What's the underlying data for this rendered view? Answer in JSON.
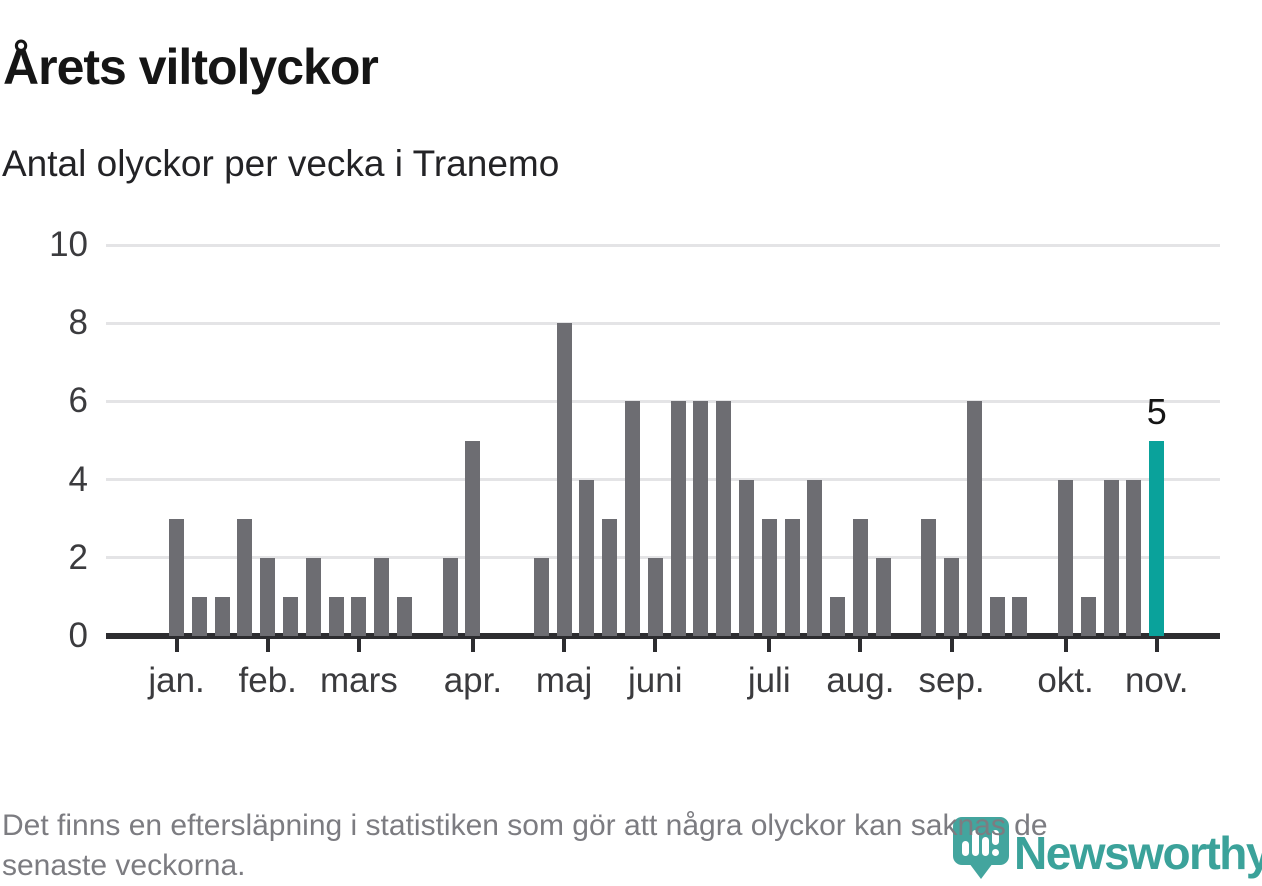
{
  "header": {
    "title": "Årets viltolyckor",
    "subtitle": "Antal olyckor per vecka i Tranemo"
  },
  "footnote": {
    "line1": "Det finns en eftersläpning i statistiken som gör att några olyckor kan saknas de",
    "line2": "senaste veckorna."
  },
  "branding": {
    "wordmark": "Newsworthy",
    "icon": "newsworthy-pin-barchart-icon",
    "color": "#3ba29a"
  },
  "chart_data": {
    "type": "bar",
    "title": "Årets viltolyckor",
    "subtitle": "Antal olyckor per vecka i Tranemo",
    "x_unit": "week of year (vecka 1–44)",
    "values": [
      3,
      1,
      1,
      3,
      2,
      1,
      2,
      1,
      1,
      2,
      1,
      0,
      2,
      5,
      0,
      0,
      2,
      8,
      4,
      3,
      6,
      2,
      6,
      6,
      6,
      4,
      3,
      3,
      4,
      1,
      3,
      2,
      0,
      3,
      2,
      6,
      1,
      1,
      0,
      4,
      1,
      4,
      4,
      5
    ],
    "month_ticks": [
      {
        "week_index": 0,
        "label": "jan."
      },
      {
        "week_index": 4,
        "label": "feb."
      },
      {
        "week_index": 8,
        "label": "mars"
      },
      {
        "week_index": 13,
        "label": "apr."
      },
      {
        "week_index": 17,
        "label": "maj"
      },
      {
        "week_index": 21,
        "label": "juni"
      },
      {
        "week_index": 26,
        "label": "juli"
      },
      {
        "week_index": 30,
        "label": "aug."
      },
      {
        "week_index": 34,
        "label": "sep."
      },
      {
        "week_index": 39,
        "label": "okt."
      },
      {
        "week_index": 43,
        "label": "nov."
      }
    ],
    "yticks": [
      0,
      2,
      4,
      6,
      8,
      10
    ],
    "ylim": [
      0,
      10
    ],
    "grid": "horizontal",
    "legend": "none",
    "highlight": {
      "index": 43,
      "value_label": "5"
    },
    "colors": {
      "bar": "#6d6d72",
      "highlight": "#0aa29b",
      "grid": "#e4e4e6",
      "axis": "#2d2d30",
      "tick_text": "#3b3b3e"
    }
  }
}
